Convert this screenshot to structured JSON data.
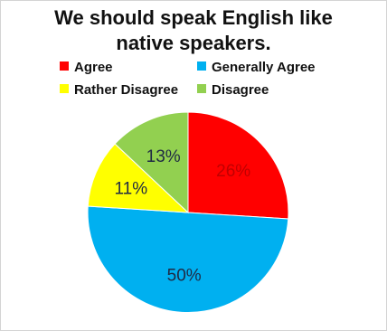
{
  "chart_data": {
    "type": "pie",
    "title_lines": [
      "We should speak English like",
      "native speakers."
    ],
    "legend_placement": "top",
    "slices": [
      {
        "label": "Agree",
        "value": 26,
        "display": "26%",
        "color": "#ff0000",
        "label_color": "#c00000"
      },
      {
        "label": "Generally Agree",
        "value": 50,
        "display": "50%",
        "color": "#00b0f0",
        "label_color": "#1f2a44"
      },
      {
        "label": "Rather Disagree",
        "value": 11,
        "display": "11%",
        "color": "#ffff00",
        "label_color": "#1f2a44"
      },
      {
        "label": "Disagree",
        "value": 13,
        "display": "13%",
        "color": "#92d050",
        "label_color": "#1f2a44"
      }
    ]
  }
}
